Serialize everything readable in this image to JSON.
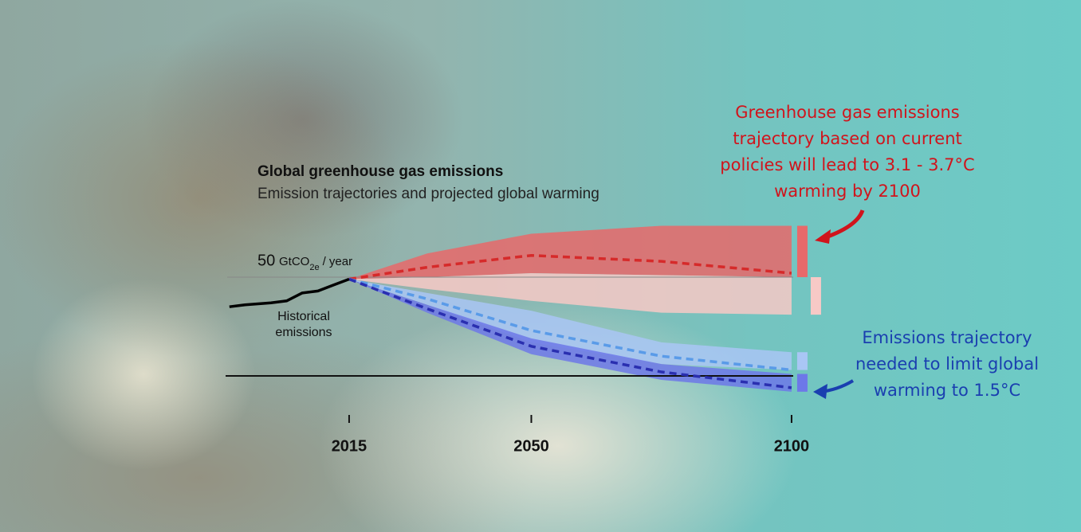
{
  "chart_data": {
    "type": "line",
    "title": "Global greenhouse gas emissions",
    "subtitle": "Emission trajectories and projected global warming",
    "y_unit": {
      "main": "GtCO",
      "sub": "2e",
      "tail": "/ year"
    },
    "xlim": [
      1990,
      2105
    ],
    "ylim": [
      -20,
      80
    ],
    "xticks": [
      2015,
      2050,
      2100
    ],
    "yticks": [
      {
        "value": 50,
        "label": "50"
      }
    ],
    "baseline": 0,
    "series": [
      {
        "kind": "band",
        "color": "#e8696a",
        "x": [
          2015,
          2030,
          2050,
          2075,
          2100
        ],
        "lower": [
          49,
          50,
          52,
          51,
          50
        ],
        "upper": [
          49,
          62,
          72,
          76,
          76
        ]
      },
      {
        "kind": "band",
        "color": "#f7c9c6",
        "x": [
          2015,
          2030,
          2050,
          2075,
          2100
        ],
        "lower": [
          49,
          44,
          38,
          32,
          31
        ],
        "upper": [
          49,
          50,
          52,
          51,
          50
        ]
      },
      {
        "kind": "band",
        "color": "#a9c6f5",
        "x": [
          2015,
          2030,
          2050,
          2075,
          2100
        ],
        "lower": [
          49,
          36,
          17,
          6,
          3
        ],
        "upper": [
          49,
          42,
          33,
          17,
          12
        ]
      },
      {
        "kind": "band",
        "color": "#6d78e8",
        "x": [
          2015,
          2030,
          2050,
          2075,
          2100
        ],
        "lower": [
          49,
          32,
          11,
          -2,
          -8
        ],
        "upper": [
          49,
          36,
          19,
          6,
          1
        ]
      },
      {
        "kind": "dashed",
        "color": "#d62a2a",
        "x": [
          2015,
          2030,
          2050,
          2075,
          2100
        ],
        "values": [
          49,
          55,
          61,
          58,
          52
        ]
      },
      {
        "kind": "dashed",
        "color": "#5a9be8",
        "x": [
          2015,
          2030,
          2050,
          2075,
          2100
        ],
        "values": [
          49,
          39,
          23,
          10,
          3
        ]
      },
      {
        "kind": "dashed",
        "color": "#2a2fb0",
        "x": [
          2015,
          2030,
          2050,
          2075,
          2100
        ],
        "values": [
          49,
          34,
          15,
          2,
          -6
        ]
      },
      {
        "kind": "line",
        "color": "#000000",
        "x": [
          1992,
          1995,
          2000,
          2003,
          2006,
          2009,
          2012,
          2015
        ],
        "values": [
          35,
          36,
          37,
          38,
          42,
          43,
          46,
          49
        ]
      }
    ],
    "annotations": {
      "historical": [
        "Historical",
        "emissions"
      ],
      "current_policies": [
        "Greenhouse gas emissions",
        "trajectory based on current",
        "policies will lead to 3.1 - 3.7°C",
        "warming by 2100"
      ],
      "target": [
        "Emissions trajectory",
        "needed to limit global",
        "warming to 1.5°C"
      ]
    }
  }
}
